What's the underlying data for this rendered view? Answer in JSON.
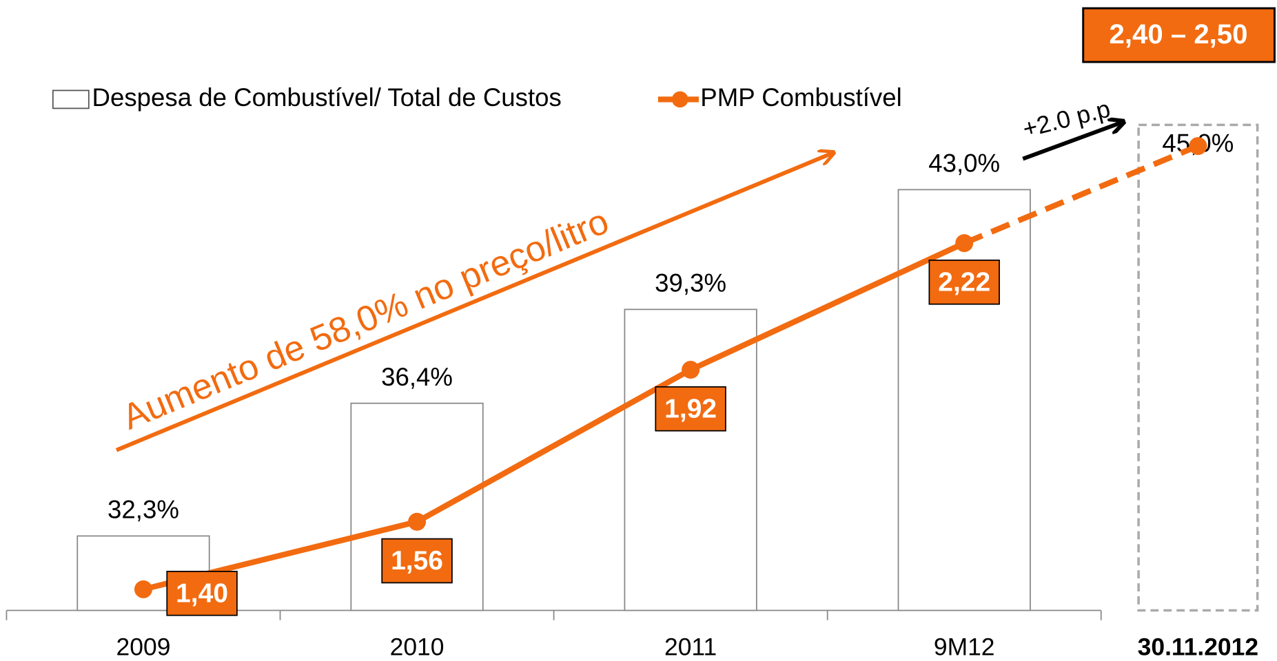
{
  "chart_data": {
    "type": "bar",
    "categories": [
      "2009",
      "2010",
      "2011",
      "9M12",
      "30.11.2012"
    ],
    "series": [
      {
        "name": "Despesa de Combustível/ Total de Custos",
        "type": "bar",
        "color": "#ffffff",
        "values": [
          32.3,
          36.4,
          39.3,
          43.0,
          45.0
        ],
        "value_labels": [
          "32,3%",
          "36,4%",
          "39,3%",
          "43,0%",
          "45,0%"
        ]
      },
      {
        "name": "PMP Combustível",
        "type": "line",
        "axis": "y2",
        "color": "#f26b10",
        "values": [
          1.4,
          1.56,
          1.92,
          2.22,
          2.45
        ],
        "value_labels": [
          "1,40",
          "1,56",
          "1,92",
          "2,22",
          null
        ]
      }
    ],
    "ylim": [
      30,
      48
    ],
    "y2lim": [
      1.35,
      2.73
    ],
    "annotations": [
      "Aumento de 58,0% no preço/litro",
      "+2.0 p.p",
      "2,40 – 2,50"
    ]
  }
}
